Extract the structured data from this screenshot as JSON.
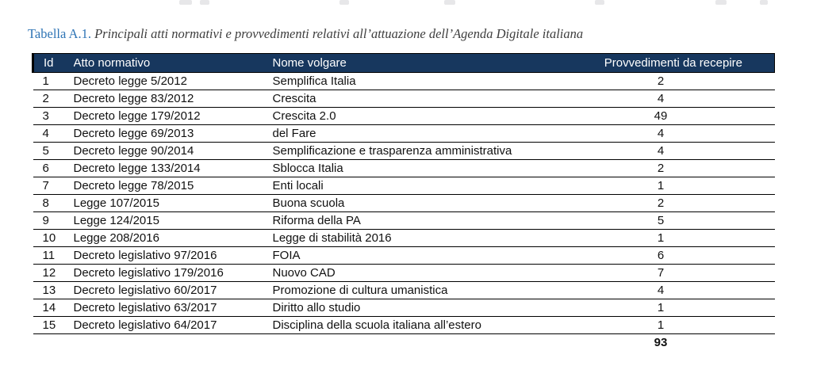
{
  "caption": {
    "label": "Tabella A.1.",
    "text": " Principali atti normativi e provvedimenti relativi all’attuazione dell’Agenda Digitale italiana"
  },
  "table": {
    "columns": [
      "Id",
      "Atto normativo",
      "Nome volgare",
      "Provvedimenti da recepire"
    ],
    "rows": [
      {
        "id": "1",
        "atto": "Decreto legge 5/2012",
        "nome": "Semplifica Italia",
        "provvedimenti": "2"
      },
      {
        "id": "2",
        "atto": "Decreto legge 83/2012",
        "nome": "Crescita",
        "provvedimenti": "4"
      },
      {
        "id": "3",
        "atto": "Decreto legge 179/2012",
        "nome": "Crescita 2.0",
        "provvedimenti": "49"
      },
      {
        "id": "4",
        "atto": "Decreto legge 69/2013",
        "nome": "del Fare",
        "provvedimenti": "4"
      },
      {
        "id": "5",
        "atto": "Decreto legge 90/2014",
        "nome": "Semplificazione e trasparenza amministrativa",
        "provvedimenti": "4"
      },
      {
        "id": "6",
        "atto": "Decreto legge 133/2014",
        "nome": "Sblocca Italia",
        "provvedimenti": "2"
      },
      {
        "id": "7",
        "atto": "Decreto legge 78/2015",
        "nome": "Enti locali",
        "provvedimenti": "1"
      },
      {
        "id": "8",
        "atto": "Legge 107/2015",
        "nome": "Buona scuola",
        "provvedimenti": "2"
      },
      {
        "id": "9",
        "atto": "Legge 124/2015",
        "nome": "Riforma della PA",
        "provvedimenti": "5"
      },
      {
        "id": "10",
        "atto": "Legge 208/2016",
        "nome": "Legge di stabilità 2016",
        "provvedimenti": "1"
      },
      {
        "id": "11",
        "atto": "Decreto legislativo 97/2016",
        "nome": "FOIA",
        "provvedimenti": "6"
      },
      {
        "id": "12",
        "atto": "Decreto legislativo 179/2016",
        "nome": "Nuovo CAD",
        "provvedimenti": "7"
      },
      {
        "id": "13",
        "atto": "Decreto legislativo 60/2017",
        "nome": "Promozione di cultura umanistica",
        "provvedimenti": "4"
      },
      {
        "id": "14",
        "atto": "Decreto legislativo 63/2017",
        "nome": "Diritto allo studio",
        "provvedimenti": "1"
      },
      {
        "id": "15",
        "atto": "Decreto legislativo 64/2017",
        "nome": "Disciplina della scuola italiana all’estero",
        "provvedimenti": "1"
      }
    ],
    "total": "93"
  },
  "colors": {
    "header_bg": "#17375E",
    "header_text": "#FFFFFF",
    "caption_accent": "#2E74B5",
    "body_text": "#111111"
  }
}
